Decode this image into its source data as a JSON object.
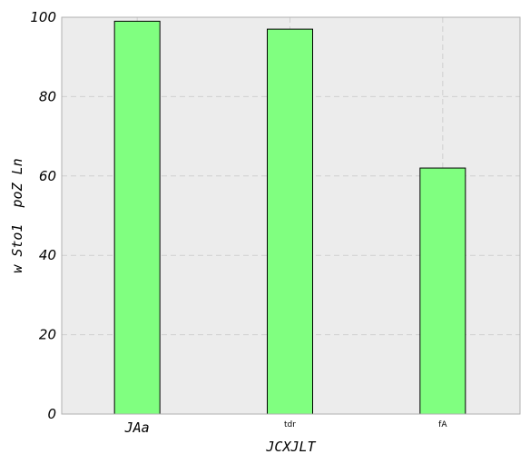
{
  "chart_data": {
    "type": "bar",
    "categories": [
      "JAa",
      "tdr",
      "fA"
    ],
    "values": [
      99,
      97,
      62
    ],
    "xlabel": "JCXJLT",
    "ylabel": "w Sto1  poZ Ln",
    "ylim": [
      0,
      100
    ],
    "yticks": [
      "0",
      "20",
      "40",
      "60",
      "80",
      "100"
    ],
    "grid": true,
    "colors": {
      "bar": "#80ff80",
      "bar_edge": "#000000",
      "plot_bg": "#ececec",
      "grid": "#cfcfcf"
    }
  }
}
